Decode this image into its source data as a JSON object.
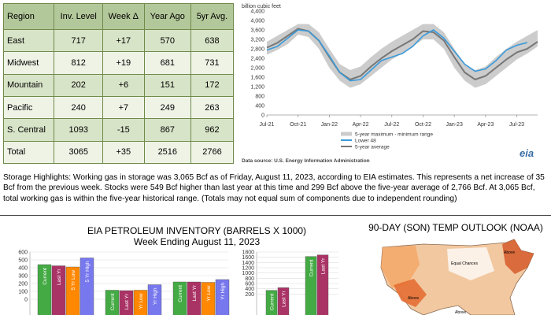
{
  "storage_table": {
    "headers": [
      "Region",
      "Inv. Level",
      "Week Δ",
      "Year Ago",
      "5yr Avg."
    ],
    "rows": [
      [
        "East",
        "717",
        "+17",
        "570",
        "638"
      ],
      [
        "Midwest",
        "812",
        "+19",
        "681",
        "731"
      ],
      [
        "Mountain",
        "202",
        "+6",
        "151",
        "172"
      ],
      [
        "Pacific",
        "240",
        "+7",
        "249",
        "263"
      ],
      [
        "S. Central",
        "1093",
        "-15",
        "867",
        "962"
      ],
      [
        "Total",
        "3065",
        "+35",
        "2516",
        "2766"
      ]
    ]
  },
  "highlights": "Storage Highlights: Working gas in storage was 3,065 Bcf as of Friday, August 11, 2023, according to EIA estimates. This represents a net increase of 35 Bcf from the previous week. Stocks were 549 Bcf higher than last year at this time and 299 Bcf above the five-year average of 2,766 Bcf. At 3,065 Bcf, total working gas is within the five-year historical range. (Totals may not equal sum of components due to independent rounding)",
  "petroleum": {
    "title": "EIA PETROLEUM INVENTORY (BARRELS X 1000)",
    "subtitle": "Week Ending August 11, 2023"
  },
  "temp_outlook": {
    "title": "90-DAY (SON) TEMP OUTLOOK (NOAA)",
    "map_labels": [
      "Equal Chances",
      "Above",
      "Above",
      "Above"
    ]
  },
  "chart_data": [
    {
      "type": "area",
      "ylabel": "billion cubic feet",
      "ylim": [
        0,
        4400
      ],
      "yticks": [
        0,
        400,
        800,
        1200,
        1600,
        2000,
        2400,
        2800,
        3200,
        3600,
        4000,
        4400
      ],
      "ytick_labels": [
        "0",
        "400",
        "800",
        "1,200",
        "1,600",
        "2,000",
        "2,400",
        "2,800",
        "3,200",
        "3,600",
        "4,000",
        "4,400"
      ],
      "xtick_labels": [
        "Jul-21",
        "Oct-21",
        "Jan-22",
        "Apr-22",
        "Jul-22",
        "Oct-22",
        "Jan-23",
        "Apr-23",
        "Jul-23"
      ],
      "x": [
        "2021-07",
        "2021-08",
        "2021-09",
        "2021-10",
        "2021-11",
        "2021-12",
        "2022-01",
        "2022-02",
        "2022-03",
        "2022-04",
        "2022-05",
        "2022-06",
        "2022-07",
        "2022-08",
        "2022-09",
        "2022-10",
        "2022-11",
        "2022-12",
        "2023-01",
        "2023-02",
        "2023-03",
        "2023-04",
        "2023-05",
        "2023-06",
        "2023-07",
        "2023-08",
        "2023-09"
      ],
      "series": [
        {
          "name": "5-year maximum - minimum range",
          "color": "#cccccc",
          "max": [
            3100,
            3350,
            3600,
            3850,
            3850,
            3500,
            2800,
            2150,
            1900,
            2050,
            2450,
            2800,
            3100,
            3350,
            3600,
            3850,
            3850,
            3500,
            2800,
            2150,
            1900,
            2050,
            2450,
            2800,
            3100,
            3350,
            3600
          ],
          "min": [
            2550,
            2750,
            3000,
            3400,
            3300,
            2800,
            2000,
            1450,
            1150,
            1300,
            1650,
            2000,
            2350,
            2600,
            2900,
            3200,
            3200,
            2800,
            2000,
            1450,
            1150,
            1300,
            1650,
            2000,
            2350,
            2600,
            2900
          ]
        },
        {
          "name": "Lower 48",
          "color": "#3a9ad9",
          "values": [
            2750,
            2900,
            3250,
            3600,
            3550,
            3150,
            2500,
            1800,
            1450,
            1500,
            1900,
            2300,
            2450,
            2600,
            2900,
            3350,
            3600,
            3250,
            2700,
            2150,
            1850,
            1950,
            2300,
            2750,
            2950,
            3065,
            null
          ]
        },
        {
          "name": "5-year average",
          "color": "#777777",
          "values": [
            2850,
            3050,
            3350,
            3650,
            3550,
            3150,
            2450,
            1800,
            1500,
            1650,
            2050,
            2400,
            2700,
            2950,
            3200,
            3550,
            3500,
            3150,
            2450,
            1800,
            1500,
            1650,
            2000,
            2350,
            2650,
            2800,
            3100
          ]
        }
      ],
      "source": "Data source:  U.S. Energy Information Administration",
      "logo": "eia"
    },
    {
      "type": "bar",
      "ylim": [
        0,
        600
      ],
      "yticks": [
        0,
        100,
        200,
        300,
        400,
        500,
        600
      ],
      "groups": [
        {
          "bars": [
            {
              "label": "Current",
              "value": 440,
              "color": "#44aa44"
            },
            {
              "label": "Last Yr",
              "value": 425,
              "color": "#aa3366"
            },
            {
              "label": "5 Yr Low",
              "value": 410,
              "color": "#ff8800"
            },
            {
              "label": "5 Yr High",
              "value": 525,
              "color": "#7777ee"
            }
          ]
        },
        {
          "bars": [
            {
              "label": "Current",
              "value": 115,
              "color": "#44aa44"
            },
            {
              "label": "Last Yr",
              "value": 110,
              "color": "#aa3366"
            },
            {
              "label": "Yr Low",
              "value": 115,
              "color": "#ff8800"
            },
            {
              "label": "Yr High",
              "value": 185,
              "color": "#7777ee"
            }
          ]
        },
        {
          "bars": [
            {
              "label": "Current",
              "value": 220,
              "color": "#44aa44"
            },
            {
              "label": "Last Yr",
              "value": 220,
              "color": "#aa3366"
            },
            {
              "label": "Yr Low",
              "value": 215,
              "color": "#ff8800"
            },
            {
              "label": "Yr High",
              "value": 250,
              "color": "#7777ee"
            }
          ]
        }
      ]
    },
    {
      "type": "bar",
      "ylim": [
        0,
        1800
      ],
      "yticks": [
        200,
        400,
        600,
        800,
        1000,
        1200,
        1400,
        1600,
        1800
      ],
      "groups": [
        {
          "bars": [
            {
              "label": "Current",
              "value": 340,
              "color": "#44aa44"
            },
            {
              "label": "Last Yr",
              "value": 440,
              "color": "#aa3366"
            }
          ]
        },
        {
          "bars": [
            {
              "label": "Current",
              "value": 1630,
              "color": "#44aa44"
            },
            {
              "label": "Last Yr",
              "value": 1690,
              "color": "#aa3366"
            }
          ]
        }
      ]
    }
  ]
}
